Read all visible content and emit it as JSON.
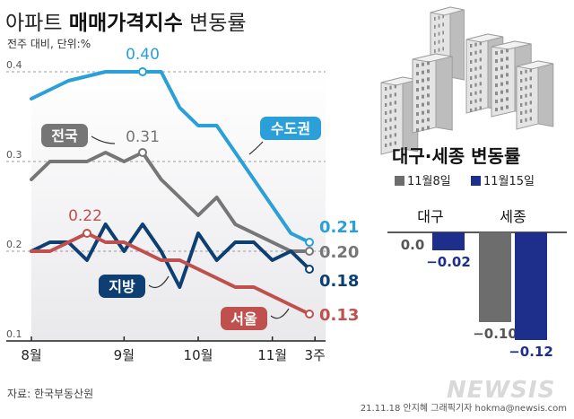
{
  "title_light": "아파트",
  "title_bold": "매매가격지수",
  "title_tail": "변동률",
  "unit_note": "전주 대비, 단위:%",
  "source": "자료: 한국부동산원",
  "credit": "21.11.18 안지혜 그래픽기자 hokma@newsis.com",
  "watermark": "NEWSIS",
  "colors": {
    "capital": "#2a9fd8",
    "nation": "#767676",
    "local": "#0e3f72",
    "seoul": "#c0504d",
    "bar_nov8": "#6d6d6d",
    "bar_nov15": "#1d2f8a"
  },
  "chart_data": [
    {
      "type": "line",
      "title": "",
      "ylim": [
        0.1,
        0.4
      ],
      "yticks": [
        "0.1",
        "0.2",
        "0.3",
        "0.4"
      ],
      "x_tick_labels": [
        "8월",
        "9월",
        "10월",
        "11월",
        "3주"
      ],
      "x_tick_index": [
        0,
        5,
        9,
        13,
        15.3
      ],
      "series": [
        {
          "name": "수도권",
          "color_key": "capital",
          "values": [
            0.37,
            0.38,
            0.39,
            0.395,
            0.4,
            0.4,
            0.4,
            0.4,
            0.36,
            0.34,
            0.34,
            0.31,
            0.28,
            0.25,
            0.22,
            0.21
          ],
          "peak_label": "0.40",
          "peak_index": 6,
          "end_label": "0.21"
        },
        {
          "name": "전국",
          "color_key": "nation",
          "values": [
            0.28,
            0.3,
            0.3,
            0.3,
            0.31,
            0.3,
            0.31,
            0.28,
            0.26,
            0.24,
            0.26,
            0.23,
            0.22,
            0.21,
            0.2,
            0.2
          ],
          "peak_label": "0.31",
          "peak_index": 6,
          "end_label": "0.20"
        },
        {
          "name": "지방",
          "color_key": "local",
          "values": [
            0.2,
            0.21,
            0.21,
            0.19,
            0.23,
            0.2,
            0.23,
            0.2,
            0.16,
            0.22,
            0.19,
            0.21,
            0.21,
            0.19,
            0.2,
            0.18
          ],
          "end_label": "0.18"
        },
        {
          "name": "서울",
          "color_key": "seoul",
          "values": [
            0.2,
            0.2,
            0.21,
            0.22,
            0.21,
            0.21,
            0.2,
            0.19,
            0.19,
            0.18,
            0.17,
            0.16,
            0.16,
            0.15,
            0.14,
            0.13
          ],
          "peak_label": "0.22",
          "peak_index": 3,
          "end_label": "0.13"
        }
      ]
    },
    {
      "type": "bar",
      "title": "대구·세종 변동률",
      "legend": [
        "11월8일",
        "11월15일"
      ],
      "categories": [
        "대구",
        "세종"
      ],
      "series": [
        {
          "name": "11월8일",
          "values": [
            0.0,
            -0.1
          ],
          "labels": [
            "0.0",
            "−0.10"
          ]
        },
        {
          "name": "11월15일",
          "values": [
            -0.02,
            -0.12
          ],
          "labels": [
            "−0.02",
            "−0.12"
          ]
        }
      ],
      "ylim": [
        -0.13,
        0
      ]
    }
  ]
}
